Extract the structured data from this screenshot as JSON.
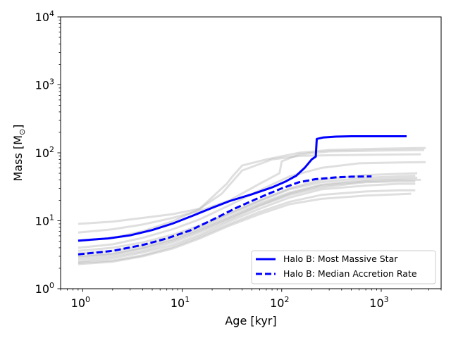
{
  "chart_data": {
    "type": "line",
    "xlabel": "Age [kyr]",
    "ylabel": "Mass [M",
    "ylabel_sub": "⊙",
    "ylabel_close": "]",
    "xscale": "log",
    "yscale": "log",
    "xlim": [
      0.6,
      4000
    ],
    "ylim": [
      1,
      10000
    ],
    "x_ticks": [
      {
        "value": 1,
        "base": "10",
        "exp": "0"
      },
      {
        "value": 10,
        "base": "10",
        "exp": "1"
      },
      {
        "value": 100,
        "base": "10",
        "exp": "2"
      },
      {
        "value": 1000,
        "base": "10",
        "exp": "3"
      }
    ],
    "y_ticks": [
      {
        "value": 1,
        "base": "10",
        "exp": "0"
      },
      {
        "value": 10,
        "base": "10",
        "exp": "1"
      },
      {
        "value": 100,
        "base": "10",
        "exp": "2"
      },
      {
        "value": 1000,
        "base": "10",
        "exp": "3"
      },
      {
        "value": 10000,
        "base": "10",
        "exp": "4"
      }
    ],
    "grid": false,
    "legend_position": "lower right",
    "colors": {
      "highlight": "#0000ff",
      "background_tracks": "#b0b0b0"
    },
    "series": [
      {
        "name": "Halo B: Most Massive Star",
        "style": "solid",
        "x": [
          0.9,
          1.8,
          3,
          5,
          8,
          13,
          20,
          30,
          50,
          80,
          110,
          140,
          170,
          200,
          220,
          225,
          260,
          350,
          500,
          1000,
          1800
        ],
        "y": [
          5.1,
          5.5,
          6.1,
          7.3,
          9.1,
          12,
          15.5,
          19.5,
          24.5,
          31,
          38,
          46,
          60,
          80,
          88,
          160,
          168,
          173,
          175,
          175,
          175
        ]
      },
      {
        "name": "Halo B: Median Accretion Rate",
        "style": "dashed",
        "x": [
          0.9,
          2,
          4,
          7,
          12,
          20,
          35,
          60,
          100,
          150,
          220,
          350,
          500,
          800
        ],
        "y": [
          3.2,
          3.6,
          4.4,
          5.5,
          7.2,
          10.3,
          15.5,
          22,
          30,
          37,
          41,
          43.5,
          44.5,
          45
        ]
      }
    ],
    "background_tracks": [
      {
        "x": [
          0.9,
          2,
          4,
          8,
          15,
          25,
          40,
          80,
          150,
          300,
          1000,
          2500
        ],
        "y": [
          9.0,
          9.7,
          11,
          12.5,
          15,
          25,
          55,
          80,
          90,
          92,
          94,
          95
        ]
      },
      {
        "x": [
          0.9,
          2,
          4,
          8,
          15,
          30,
          60,
          95,
          100,
          150,
          300,
          1000,
          2700
        ],
        "y": [
          6.7,
          7.5,
          8.8,
          11,
          14,
          20,
          35,
          50,
          75,
          95,
          105,
          108,
          110
        ]
      },
      {
        "x": [
          0.9,
          2,
          4,
          8,
          15,
          28,
          32,
          40,
          70,
          150,
          300,
          1000,
          2800
        ],
        "y": [
          5.0,
          5.6,
          7,
          9.8,
          15,
          35,
          45,
          65,
          80,
          100,
          110,
          115,
          118
        ]
      },
      {
        "x": [
          0.9,
          2,
          4,
          8,
          15,
          30,
          60,
          120,
          250,
          600,
          1500,
          2800
        ],
        "y": [
          4.0,
          4.5,
          5.6,
          7.5,
          10.5,
          17,
          28,
          45,
          60,
          70,
          72,
          73
        ]
      },
      {
        "x": [
          0.9,
          2,
          4,
          8,
          15,
          30,
          60,
          120,
          250,
          700,
          1500,
          2300
        ],
        "y": [
          3.6,
          4.0,
          4.8,
          6.2,
          8.5,
          13,
          20,
          30,
          40,
          47,
          49,
          50
        ]
      },
      {
        "x": [
          0.9,
          2,
          4,
          8,
          15,
          30,
          60,
          120,
          250,
          700,
          1500,
          2300
        ],
        "y": [
          3.0,
          3.3,
          4.0,
          5.3,
          7.5,
          11.5,
          18,
          26,
          34,
          40,
          42,
          43
        ]
      },
      {
        "x": [
          0.9,
          2,
          4,
          8,
          15,
          30,
          60,
          120,
          250,
          700,
          1500,
          2200
        ],
        "y": [
          2.7,
          3.0,
          3.6,
          4.8,
          6.8,
          10.5,
          16.5,
          24,
          31,
          37,
          38,
          38
        ]
      },
      {
        "x": [
          0.9,
          2,
          4,
          8,
          15,
          30,
          60,
          120,
          250,
          700,
          1500,
          2200
        ],
        "y": [
          2.5,
          2.8,
          3.4,
          4.4,
          6.2,
          9.8,
          15,
          22,
          29,
          33,
          35,
          35
        ]
      },
      {
        "x": [
          0.9,
          2,
          4,
          8,
          15,
          30,
          60,
          120,
          250,
          700,
          1500,
          2200
        ],
        "y": [
          2.4,
          2.6,
          3.1,
          4.1,
          5.8,
          9.0,
          13.5,
          19,
          24,
          27,
          28,
          28
        ]
      },
      {
        "x": [
          0.9,
          2,
          4,
          8,
          15,
          30,
          60,
          120,
          250,
          700,
          1500,
          2000
        ],
        "y": [
          2.3,
          2.5,
          3.0,
          3.9,
          5.5,
          8.5,
          12.5,
          17.5,
          21,
          23.5,
          24.5,
          25
        ]
      },
      {
        "x": [
          0.9,
          2,
          4,
          8,
          15,
          30,
          60,
          120,
          250,
          700,
          1500,
          2200
        ],
        "y": [
          3.3,
          3.6,
          4.3,
          5.7,
          8.0,
          12.5,
          19.5,
          29,
          37,
          43,
          45,
          46
        ]
      },
      {
        "x": [
          0.9,
          2,
          4,
          8,
          15,
          30,
          60,
          120,
          250,
          700,
          1500,
          2500
        ],
        "y": [
          2.9,
          3.2,
          3.9,
          5.1,
          7.2,
          11,
          17,
          25,
          33,
          38,
          40,
          40
        ]
      }
    ]
  }
}
